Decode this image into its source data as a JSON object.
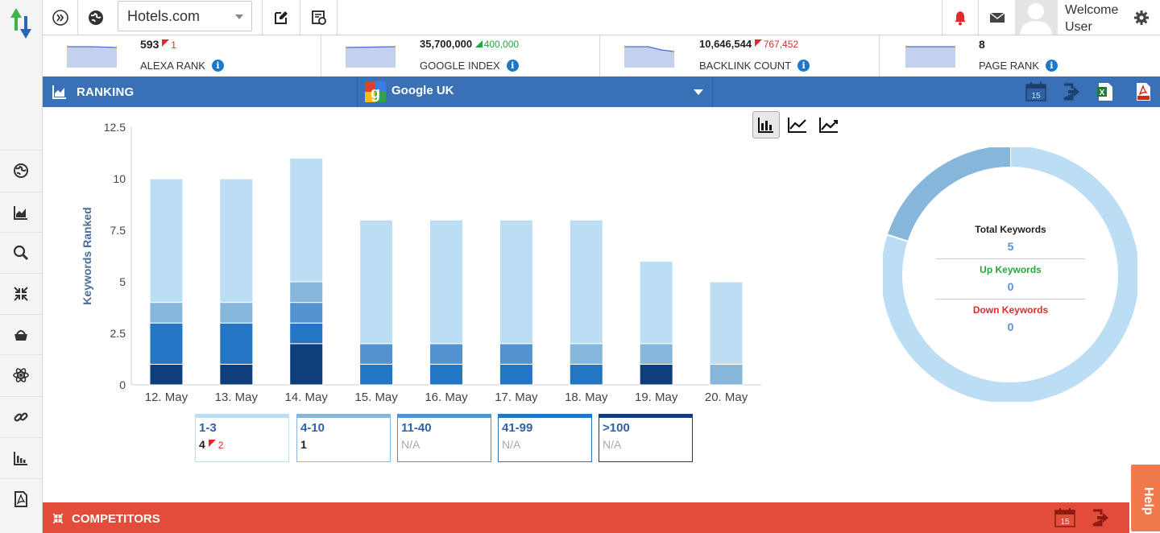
{
  "toolbar": {
    "site_selected": "Hotels.com",
    "welcome_line1": "Welcome",
    "welcome_line2": "User"
  },
  "metrics": [
    {
      "value": "593",
      "change": "1",
      "direction": "down",
      "label": "ALEXA RANK"
    },
    {
      "value": "35,700,000",
      "change": "400,000",
      "direction": "up",
      "label": "GOOGLE INDEX"
    },
    {
      "value": "10,646,544",
      "change": "767,452",
      "direction": "down",
      "label": "BACKLINK COUNT"
    },
    {
      "value": "8",
      "change": "",
      "direction": "none",
      "label": "PAGE RANK"
    }
  ],
  "ranking": {
    "title": "RANKING",
    "engine_selected": "Google UK"
  },
  "chart_data": {
    "type": "bar",
    "stacked": true,
    "ylabel": "Keywords Ranked",
    "ylim": [
      0,
      12.5
    ],
    "yticks": [
      "0",
      "2.5",
      "5",
      "7.5",
      "10",
      "12.5"
    ],
    "categories": [
      "12. May",
      "13. May",
      "14. May",
      "15. May",
      "16. May",
      "17. May",
      "18. May",
      "19. May",
      "20. May"
    ],
    "series": [
      {
        "name": "1-3",
        "color": "#bcdef4",
        "values": [
          6,
          6,
          6,
          6,
          6,
          6,
          6,
          4,
          4
        ]
      },
      {
        "name": "4-10",
        "color": "#86b6da",
        "values": [
          1,
          1,
          1,
          0,
          0,
          0,
          1,
          1,
          1
        ]
      },
      {
        "name": "11-40",
        "color": "#5593cf",
        "values": [
          0,
          0,
          1,
          1,
          1,
          1,
          0,
          0,
          0
        ]
      },
      {
        "name": "41-99",
        "color": "#2276c3",
        "values": [
          2,
          2,
          1,
          1,
          1,
          1,
          1,
          0,
          0
        ]
      },
      {
        "name": ">100",
        "color": "#0e3f7c",
        "values": [
          1,
          1,
          2,
          0,
          0,
          0,
          0,
          1,
          0
        ]
      }
    ],
    "legend": [
      {
        "range": "1-3",
        "count": "4",
        "change": "2",
        "border": "#bcdef4"
      },
      {
        "range": "4-10",
        "count": "1",
        "change": "",
        "border": "#86b6da"
      },
      {
        "range": "11-40",
        "count": "N/A",
        "change": "",
        "border": "#5593cf"
      },
      {
        "range": "41-99",
        "count": "N/A",
        "change": "",
        "border": "#2276c3"
      },
      {
        "range": ">100",
        "count": "N/A",
        "change": "",
        "border": "#0e3f7c"
      }
    ]
  },
  "donut": {
    "total_label": "Total Keywords",
    "total_value": "5",
    "up_label": "Up Keywords",
    "up_value": "0",
    "down_label": "Down Keywords",
    "down_value": "0",
    "slices": [
      {
        "fraction": 0.8,
        "color": "#bcdef4"
      },
      {
        "fraction": 0.2,
        "color": "#86b6da"
      }
    ]
  },
  "competitors": {
    "title": "COMPETITORS"
  },
  "help_label": "Help",
  "calendar_day": "15"
}
